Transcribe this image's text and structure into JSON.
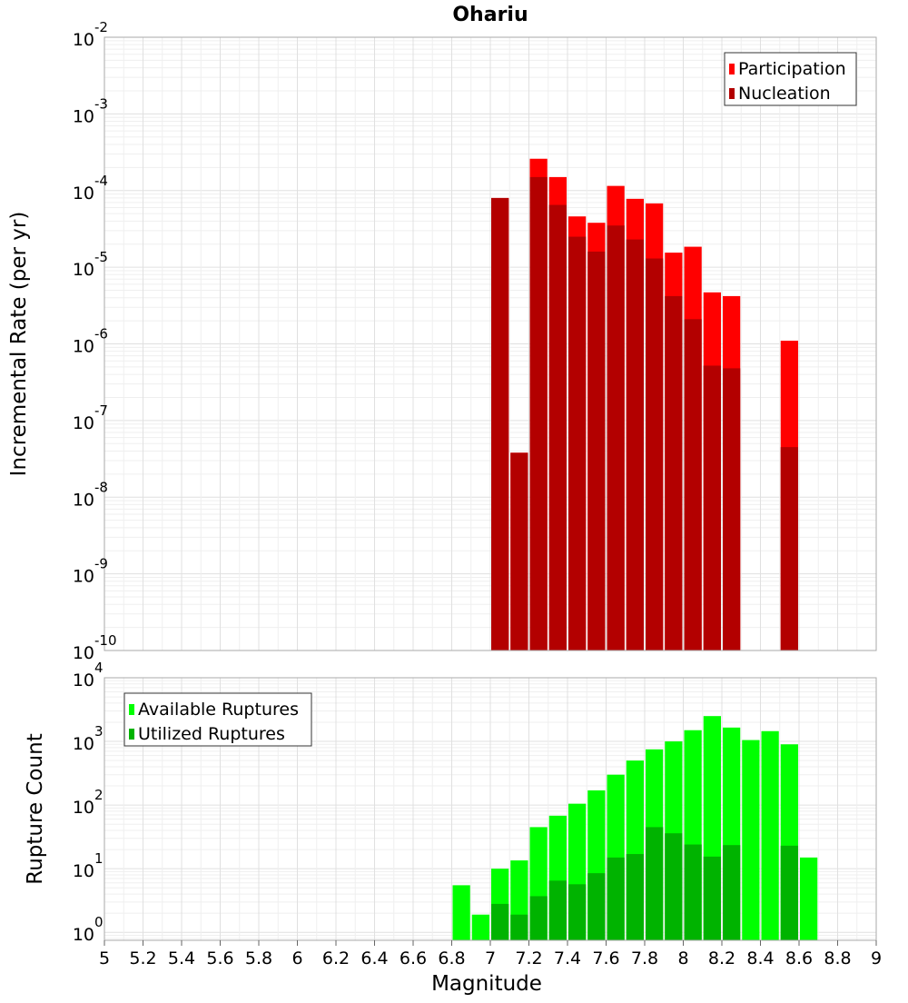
{
  "chart_data": [
    {
      "type": "bar",
      "title": "Ohariu",
      "ylabel": "Incremental Rate (per yr)",
      "xlabel": "",
      "yscale": "log",
      "xlim": [
        5,
        9
      ],
      "ylim": [
        1e-10,
        0.01
      ],
      "y_ticks": [
        {
          "base": "10",
          "exp": "-10"
        },
        {
          "base": "10",
          "exp": "-9"
        },
        {
          "base": "10",
          "exp": "-8"
        },
        {
          "base": "10",
          "exp": "-7"
        },
        {
          "base": "10",
          "exp": "-6"
        },
        {
          "base": "10",
          "exp": "-5"
        },
        {
          "base": "10",
          "exp": "-4"
        },
        {
          "base": "10",
          "exp": "-3"
        },
        {
          "base": "10",
          "exp": "-2"
        }
      ],
      "legend_position": "top-right",
      "grid": true,
      "bin_width": 0.1,
      "x": [
        7.05,
        7.15,
        7.25,
        7.35,
        7.45,
        7.55,
        7.65,
        7.75,
        7.85,
        7.95,
        8.05,
        8.15,
        8.25,
        8.55
      ],
      "series": [
        {
          "name": "Participation",
          "color": "#ff0000",
          "values": [
            8e-05,
            3.8e-08,
            0.00026,
            0.00015,
            4.6e-05,
            3.8e-05,
            0.000115,
            7.8e-05,
            6.8e-05,
            1.55e-05,
            1.85e-05,
            4.7e-06,
            4.2e-06,
            1.1e-06
          ]
        },
        {
          "name": "Nucleation",
          "color": "#b30000",
          "values": [
            8e-05,
            3.8e-08,
            0.00015,
            6.5e-05,
            2.5e-05,
            1.6e-05,
            3.5e-05,
            2.3e-05,
            1.3e-05,
            4.2e-06,
            2.1e-06,
            5.2e-07,
            4.8e-07,
            4.5e-08
          ]
        }
      ]
    },
    {
      "type": "bar",
      "ylabel": "Rupture Count",
      "xlabel": "Magnitude",
      "yscale": "log",
      "xlim": [
        5,
        9
      ],
      "ylim": [
        0.75,
        10000
      ],
      "x_ticks": [
        "5",
        "5.2",
        "5.4",
        "5.6",
        "5.8",
        "6",
        "6.2",
        "6.4",
        "6.6",
        "6.8",
        "7",
        "7.2",
        "7.4",
        "7.6",
        "7.8",
        "8",
        "8.2",
        "8.4",
        "8.6",
        "8.8",
        "9"
      ],
      "y_ticks": [
        {
          "base": "10",
          "exp": "0"
        },
        {
          "base": "10",
          "exp": "1"
        },
        {
          "base": "10",
          "exp": "2"
        },
        {
          "base": "10",
          "exp": "3"
        },
        {
          "base": "10",
          "exp": "4"
        }
      ],
      "legend_position": "top-left",
      "grid": true,
      "bin_width": 0.1,
      "x": [
        6.85,
        6.95,
        7.05,
        7.15,
        7.25,
        7.35,
        7.45,
        7.55,
        7.65,
        7.75,
        7.85,
        7.95,
        8.05,
        8.15,
        8.25,
        8.35,
        8.45,
        8.55,
        8.65
      ],
      "series": [
        {
          "name": "Available Ruptures",
          "color": "#00ff00",
          "values": [
            5.5,
            1.9,
            10,
            13.5,
            45,
            68,
            105,
            170,
            300,
            500,
            750,
            1000,
            1500,
            2500,
            1650,
            1050,
            1450,
            900,
            15
          ]
        },
        {
          "name": "Utilized Ruptures",
          "color": "#00b300",
          "values": [
            null,
            null,
            2.8,
            1.9,
            3.7,
            6.5,
            5.7,
            8.5,
            15,
            17,
            45,
            36,
            24,
            15.5,
            23.5,
            null,
            null,
            23,
            null
          ]
        }
      ]
    }
  ]
}
